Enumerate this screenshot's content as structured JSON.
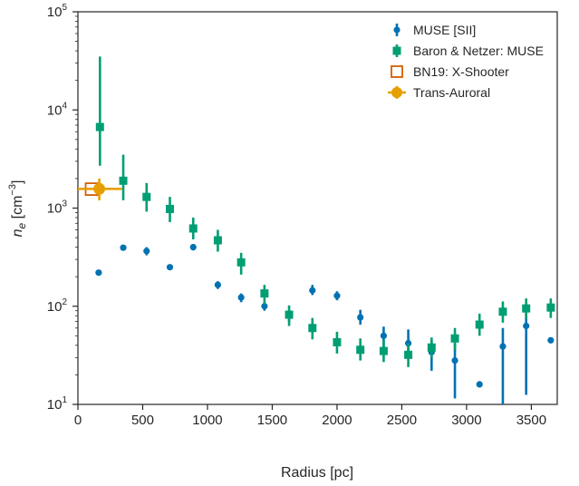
{
  "chart_data": {
    "type": "scatter",
    "xlabel": "Radius [pc]",
    "ylabel_base": "n",
    "ylabel_sub": "e",
    "ylabel_unit_prefix": " [cm",
    "ylabel_unit_exp": "−3",
    "ylabel_unit_suffix": "]",
    "xlim": [
      0,
      3700
    ],
    "ylim": [
      10,
      100000
    ],
    "yscale": "log",
    "grid": false,
    "legend_position": "top-right",
    "x_ticks": [
      {
        "value": 0,
        "label": "0"
      },
      {
        "value": 500,
        "label": "500"
      },
      {
        "value": 1000,
        "label": "1000"
      },
      {
        "value": 1500,
        "label": "1500"
      },
      {
        "value": 2000,
        "label": "2000"
      },
      {
        "value": 2500,
        "label": "2500"
      },
      {
        "value": 3000,
        "label": "3000"
      },
      {
        "value": 3500,
        "label": "3500"
      }
    ],
    "y_ticks": [
      {
        "value": 10,
        "base": "10",
        "exp": "1"
      },
      {
        "value": 100,
        "base": "10",
        "exp": "2"
      },
      {
        "value": 1000,
        "base": "10",
        "exp": "3"
      },
      {
        "value": 10000,
        "base": "10",
        "exp": "4"
      },
      {
        "value": 100000,
        "base": "10",
        "exp": "5"
      }
    ],
    "series": [
      {
        "name": "MUSE [SII]",
        "color": "#0072B2",
        "marker": "circle",
        "points": [
          {
            "x": 160,
            "y": 220,
            "lo": 220,
            "hi": 220
          },
          {
            "x": 350,
            "y": 395,
            "lo": 380,
            "hi": 410
          },
          {
            "x": 530,
            "y": 365,
            "lo": 330,
            "hi": 400
          },
          {
            "x": 710,
            "y": 250,
            "lo": 240,
            "hi": 260
          },
          {
            "x": 890,
            "y": 400,
            "lo": 370,
            "hi": 430
          },
          {
            "x": 1080,
            "y": 165,
            "lo": 150,
            "hi": 180
          },
          {
            "x": 1260,
            "y": 123,
            "lo": 110,
            "hi": 135
          },
          {
            "x": 1440,
            "y": 100,
            "lo": 90,
            "hi": 110
          },
          {
            "x": 1630,
            "y": 80,
            "lo": 70,
            "hi": 90
          },
          {
            "x": 1810,
            "y": 145,
            "lo": 130,
            "hi": 165
          },
          {
            "x": 2000,
            "y": 128,
            "lo": 115,
            "hi": 142
          },
          {
            "x": 2180,
            "y": 77,
            "lo": 65,
            "hi": 92
          },
          {
            "x": 2360,
            "y": 50,
            "lo": 38,
            "hi": 62
          },
          {
            "x": 2550,
            "y": 42,
            "lo": 30,
            "hi": 58
          },
          {
            "x": 2730,
            "y": 34,
            "lo": 22,
            "hi": 46
          },
          {
            "x": 2910,
            "y": 28,
            "lo": 11.5,
            "hi": 42
          },
          {
            "x": 3100,
            "y": 16,
            "lo": 16,
            "hi": 16
          },
          {
            "x": 3280,
            "y": 39,
            "lo": 10,
            "hi": 60
          },
          {
            "x": 3460,
            "y": 63,
            "lo": 12.5,
            "hi": 100
          },
          {
            "x": 3650,
            "y": 45,
            "lo": 45,
            "hi": 45
          }
        ]
      },
      {
        "name": "Baron & Netzer: MUSE",
        "color": "#009E73",
        "marker": "square",
        "points": [
          {
            "x": 170,
            "y": 6700,
            "lo": 2700,
            "hi": 35000
          },
          {
            "x": 350,
            "y": 1900,
            "lo": 1200,
            "hi": 3500
          },
          {
            "x": 530,
            "y": 1300,
            "lo": 920,
            "hi": 1800
          },
          {
            "x": 710,
            "y": 980,
            "lo": 720,
            "hi": 1300
          },
          {
            "x": 890,
            "y": 620,
            "lo": 480,
            "hi": 800
          },
          {
            "x": 1080,
            "y": 470,
            "lo": 360,
            "hi": 600
          },
          {
            "x": 1260,
            "y": 280,
            "lo": 210,
            "hi": 350
          },
          {
            "x": 1440,
            "y": 135,
            "lo": 105,
            "hi": 165
          },
          {
            "x": 1630,
            "y": 82,
            "lo": 63,
            "hi": 102
          },
          {
            "x": 1810,
            "y": 60,
            "lo": 46,
            "hi": 76
          },
          {
            "x": 2000,
            "y": 43,
            "lo": 33,
            "hi": 55
          },
          {
            "x": 2180,
            "y": 36,
            "lo": 28,
            "hi": 47
          },
          {
            "x": 2360,
            "y": 35,
            "lo": 27,
            "hi": 45
          },
          {
            "x": 2550,
            "y": 32,
            "lo": 24,
            "hi": 42
          },
          {
            "x": 2730,
            "y": 38,
            "lo": 30,
            "hi": 48
          },
          {
            "x": 2910,
            "y": 47,
            "lo": 36,
            "hi": 60
          },
          {
            "x": 3100,
            "y": 65,
            "lo": 50,
            "hi": 84
          },
          {
            "x": 3280,
            "y": 88,
            "lo": 68,
            "hi": 112
          },
          {
            "x": 3460,
            "y": 95,
            "lo": 74,
            "hi": 120
          },
          {
            "x": 3650,
            "y": 97,
            "lo": 76,
            "hi": 120
          }
        ]
      },
      {
        "name": "BN19: X-Shooter",
        "color": "#D55E00",
        "marker": "square-open",
        "points": [
          {
            "x": 105,
            "y": 1560,
            "lo": 1560,
            "hi": 1560
          }
        ]
      },
      {
        "name": "Trans-Auroral",
        "color": "#E69F00",
        "marker": "circle",
        "points": [
          {
            "x": 165,
            "y": 1570,
            "lo": 1200,
            "hi": 2000,
            "xlo": 0,
            "xhi": 340
          }
        ]
      }
    ]
  }
}
